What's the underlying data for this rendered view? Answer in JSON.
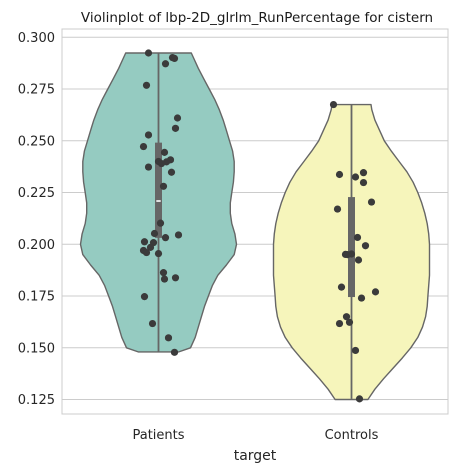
{
  "chart_data": {
    "type": "violin",
    "title": "Violinplot of lbp-2D_glrlm_RunPercentage for cistern",
    "xlabel": "target",
    "ylabel": "",
    "ylim": [
      0.118,
      0.304
    ],
    "yticks": [
      0.125,
      0.15,
      0.175,
      0.2,
      0.225,
      0.25,
      0.275,
      0.3
    ],
    "ytick_labels": [
      "0.125",
      "0.150",
      "0.175",
      "0.200",
      "0.225",
      "0.250",
      "0.275",
      "0.300"
    ],
    "grid": "horizontal",
    "categories": [
      "Patients",
      "Controls"
    ],
    "groups": [
      {
        "name": "Patients",
        "color": "#95cbc1",
        "min": 0.1479,
        "max": 0.2924,
        "q1": 0.2031,
        "median": 0.2209,
        "q3": 0.2491,
        "density": [
          [
            0.148,
            0.26
          ],
          [
            0.15,
            0.41
          ],
          [
            0.155,
            0.47
          ],
          [
            0.16,
            0.51
          ],
          [
            0.165,
            0.55
          ],
          [
            0.17,
            0.59
          ],
          [
            0.175,
            0.64
          ],
          [
            0.18,
            0.69
          ],
          [
            0.185,
            0.76
          ],
          [
            0.19,
            0.87
          ],
          [
            0.195,
            0.97
          ],
          [
            0.2,
            1.0
          ],
          [
            0.205,
            0.98
          ],
          [
            0.21,
            0.94
          ],
          [
            0.215,
            0.92
          ],
          [
            0.22,
            0.92
          ],
          [
            0.225,
            0.94
          ],
          [
            0.23,
            0.96
          ],
          [
            0.235,
            0.97
          ],
          [
            0.24,
            0.97
          ],
          [
            0.245,
            0.95
          ],
          [
            0.25,
            0.91
          ],
          [
            0.255,
            0.87
          ],
          [
            0.26,
            0.83
          ],
          [
            0.265,
            0.78
          ],
          [
            0.27,
            0.72
          ],
          [
            0.275,
            0.65
          ],
          [
            0.28,
            0.58
          ],
          [
            0.285,
            0.51
          ],
          [
            0.29,
            0.45
          ],
          [
            0.2924,
            0.42
          ]
        ],
        "points": [
          0.2924,
          0.2902,
          0.2898,
          0.2872,
          0.2768,
          0.261,
          0.256,
          0.2528,
          0.2472,
          0.2444,
          0.2408,
          0.24,
          0.2398,
          0.239,
          0.2373,
          0.2348,
          0.228,
          0.2102,
          0.2052,
          0.2045,
          0.2032,
          0.2012,
          0.2008,
          0.1985,
          0.197,
          0.196,
          0.1955,
          0.1863,
          0.1838,
          0.1832,
          0.1747,
          0.1617,
          0.1548,
          0.1478
        ],
        "jitter": [
          -0.1,
          0.14,
          0.16,
          0.07,
          -0.12,
          0.19,
          0.17,
          -0.1,
          -0.15,
          0.06,
          0.12,
          0.0,
          0.08,
          0.03,
          -0.1,
          0.13,
          0.05,
          0.02,
          -0.04,
          0.2,
          0.07,
          -0.14,
          -0.05,
          -0.08,
          -0.15,
          -0.12,
          0.0,
          0.05,
          0.17,
          0.06,
          -0.14,
          -0.06,
          0.1,
          0.16
        ]
      },
      {
        "name": "Controls",
        "color": "#f6f5bb",
        "min": 0.1253,
        "max": 0.2675,
        "q1": 0.1745,
        "median": 0.1951,
        "q3": 0.2228,
        "density": [
          [
            0.125,
            0.21
          ],
          [
            0.13,
            0.3
          ],
          [
            0.135,
            0.41
          ],
          [
            0.14,
            0.53
          ],
          [
            0.145,
            0.65
          ],
          [
            0.15,
            0.76
          ],
          [
            0.155,
            0.85
          ],
          [
            0.16,
            0.91
          ],
          [
            0.165,
            0.95
          ],
          [
            0.17,
            0.97
          ],
          [
            0.175,
            0.98
          ],
          [
            0.18,
            0.99
          ],
          [
            0.185,
            1.0
          ],
          [
            0.19,
            1.0
          ],
          [
            0.195,
            1.0
          ],
          [
            0.2,
            1.0
          ],
          [
            0.205,
            0.99
          ],
          [
            0.21,
            0.97
          ],
          [
            0.215,
            0.94
          ],
          [
            0.22,
            0.9
          ],
          [
            0.225,
            0.85
          ],
          [
            0.23,
            0.79
          ],
          [
            0.235,
            0.71
          ],
          [
            0.24,
            0.61
          ],
          [
            0.245,
            0.51
          ],
          [
            0.25,
            0.42
          ],
          [
            0.255,
            0.36
          ],
          [
            0.26,
            0.3
          ],
          [
            0.265,
            0.26
          ],
          [
            0.2675,
            0.25
          ]
        ],
        "points": [
          0.2675,
          0.2346,
          0.2337,
          0.2325,
          0.2298,
          0.2204,
          0.217,
          0.2033,
          0.1993,
          0.1953,
          0.1951,
          0.195,
          0.1924,
          0.1793,
          0.177,
          0.174,
          0.165,
          0.1623,
          0.1617,
          0.1487,
          0.1253
        ],
        "jitter": [
          -0.18,
          0.12,
          -0.12,
          0.04,
          0.12,
          0.2,
          -0.14,
          0.06,
          0.14,
          0.0,
          -0.06,
          -0.04,
          0.07,
          -0.1,
          0.24,
          0.1,
          -0.05,
          -0.02,
          -0.12,
          0.04,
          0.08
        ]
      }
    ]
  }
}
